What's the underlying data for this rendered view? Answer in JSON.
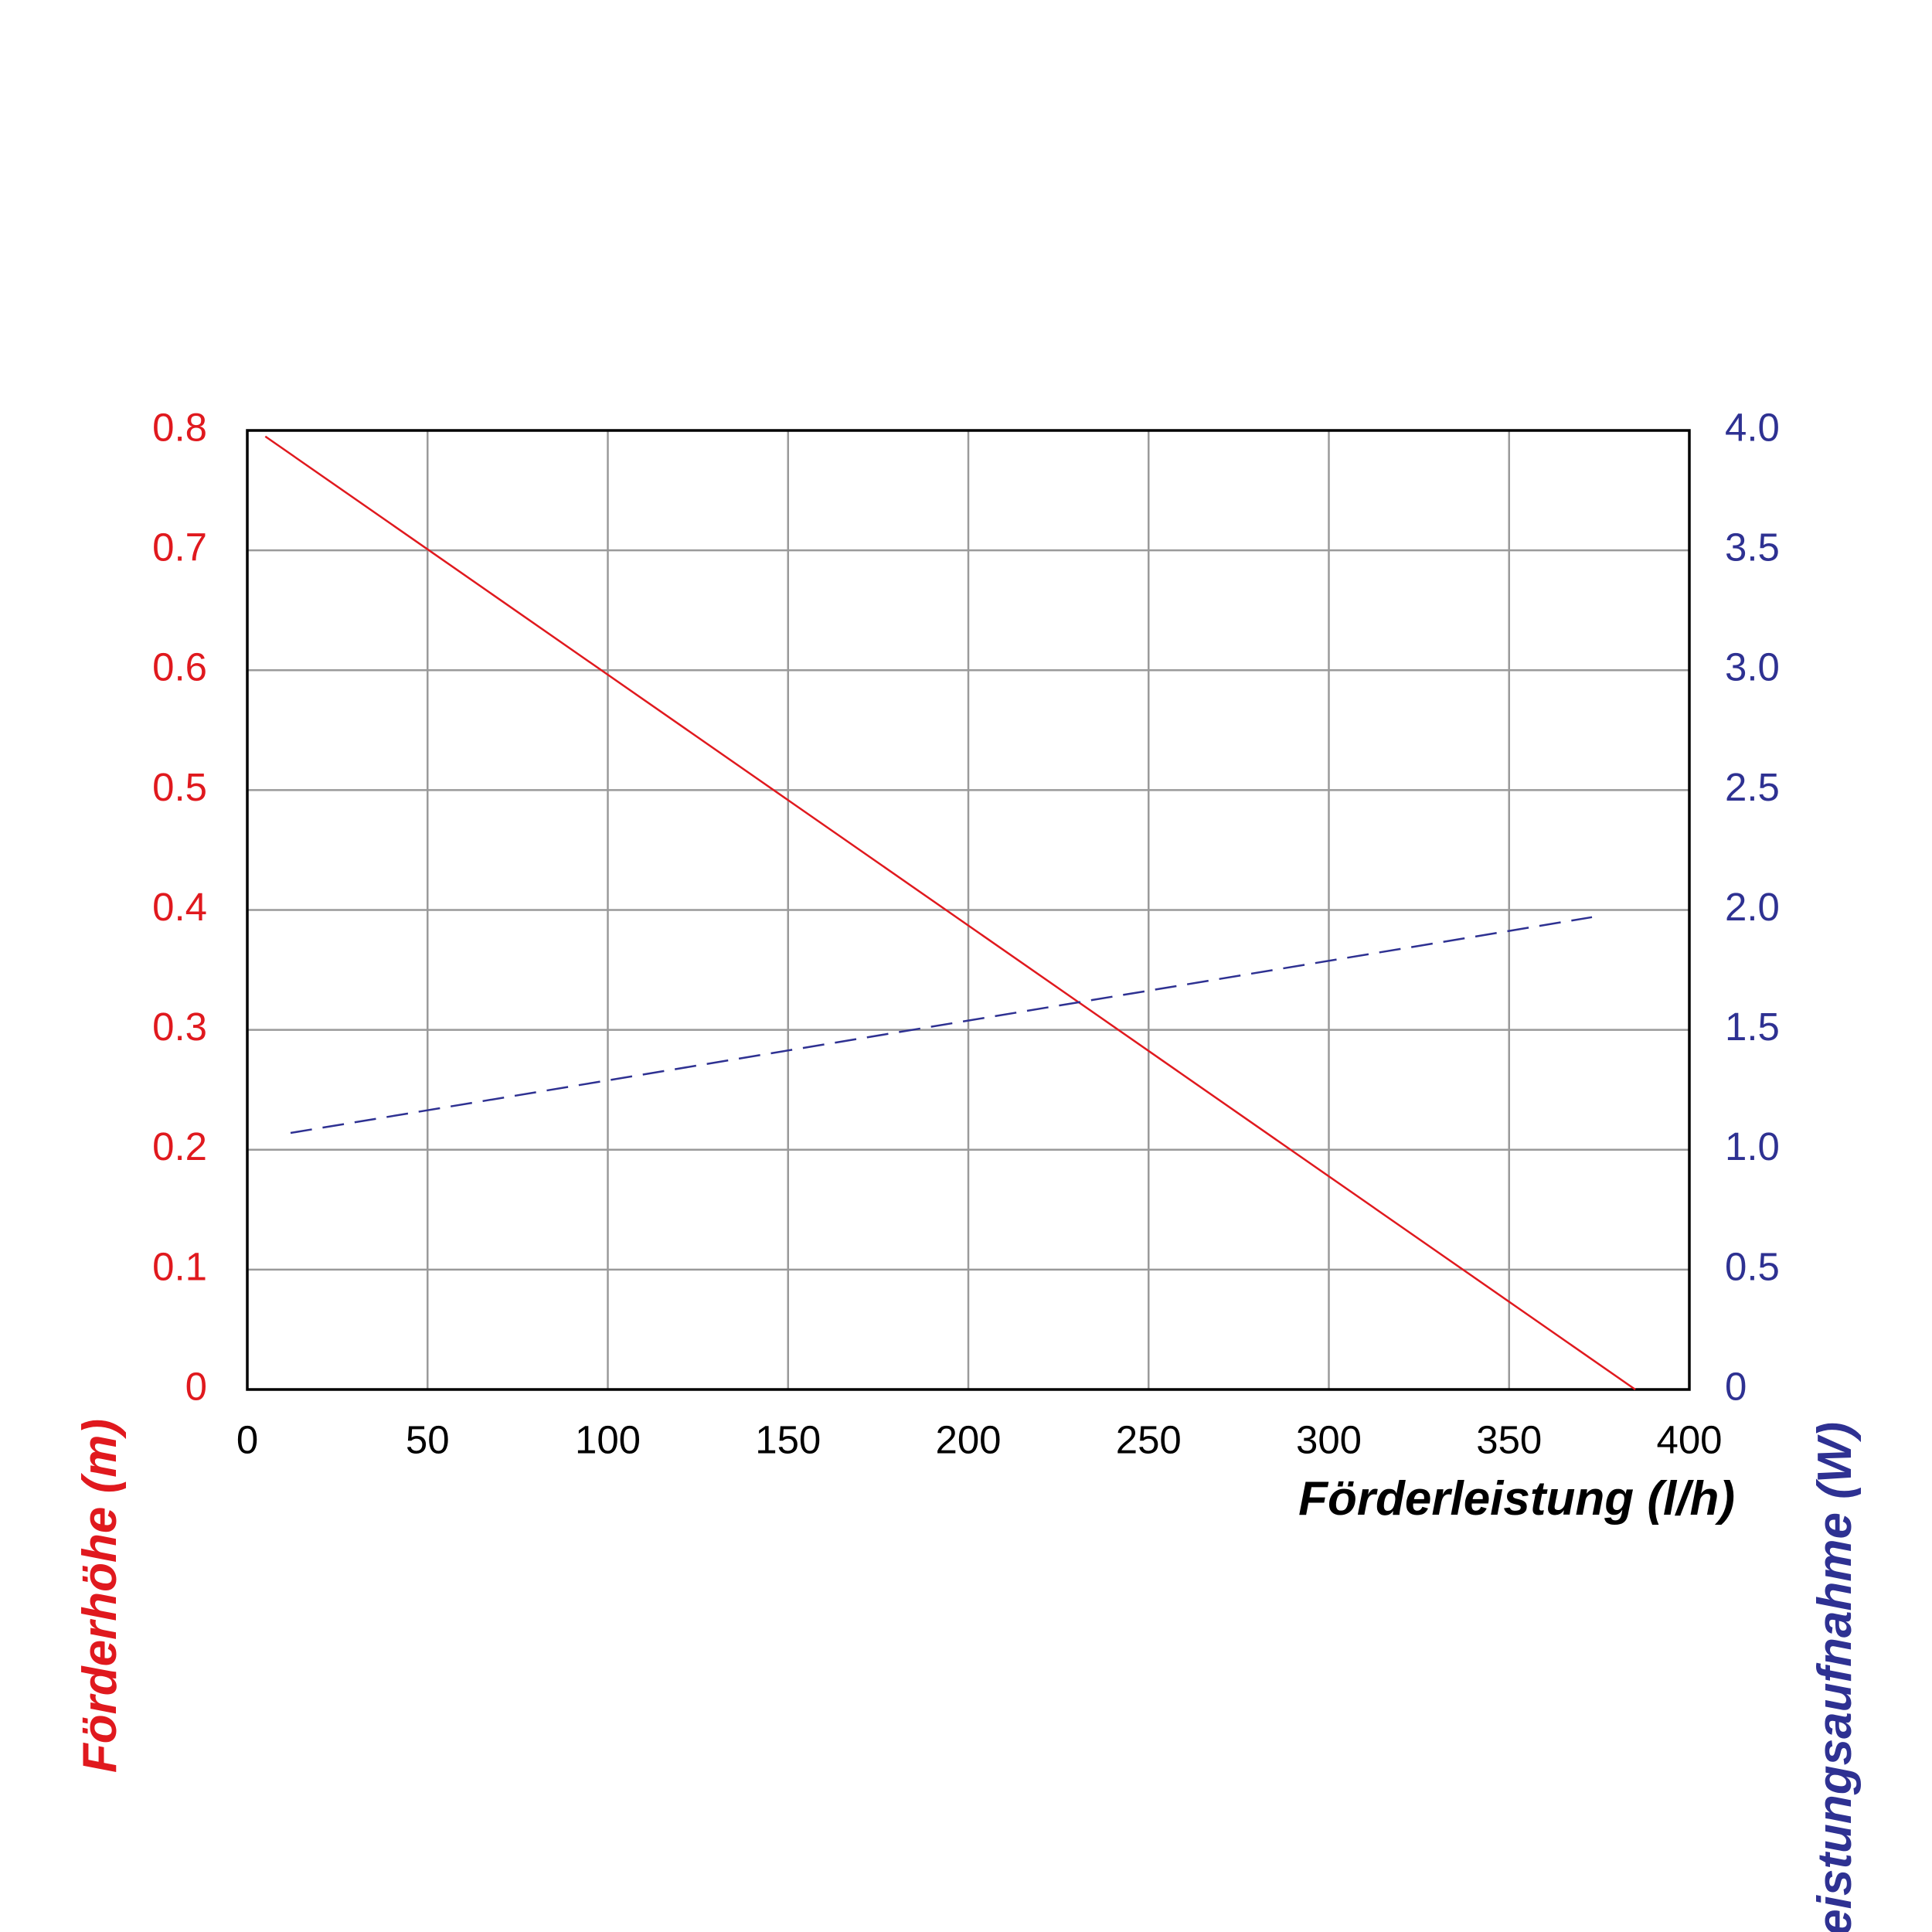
{
  "chart_data": {
    "type": "line",
    "xlabel": "Förderleistung (l/h)",
    "ylabel": "Förderhöhe (m)",
    "y2label": "Leistungsaufnahme (W)",
    "xlim": [
      0,
      400
    ],
    "xticks": [
      0,
      50,
      100,
      150,
      200,
      250,
      300,
      350,
      400
    ],
    "ylim": [
      0,
      0.8
    ],
    "yticks": [
      0,
      0.1,
      0.2,
      0.3,
      0.4,
      0.5,
      0.6,
      0.7,
      0.8
    ],
    "y2lim": [
      0,
      4
    ],
    "y2ticks": [
      0,
      0.5,
      {
        "value": 1,
        "label": "1.0"
      },
      1.5,
      {
        "value": 2,
        "label": "2.0"
      },
      2.5,
      {
        "value": 3,
        "label": "3.0"
      },
      3.5,
      {
        "value": 4,
        "label": "4.0"
      }
    ],
    "grid": true,
    "ycolor": "#e0191e",
    "y2color": "#2e3192",
    "series": [
      {
        "color": "#e0191e",
        "x": [
          5,
          385
        ],
        "values": [
          0.795,
          0
        ],
        "dash": false
      },
      {
        "color": "#2e3192",
        "x": [
          12,
          373
        ],
        "values": [
          1.07,
          1.97
        ],
        "axis": "y2",
        "dash": true
      }
    ]
  }
}
